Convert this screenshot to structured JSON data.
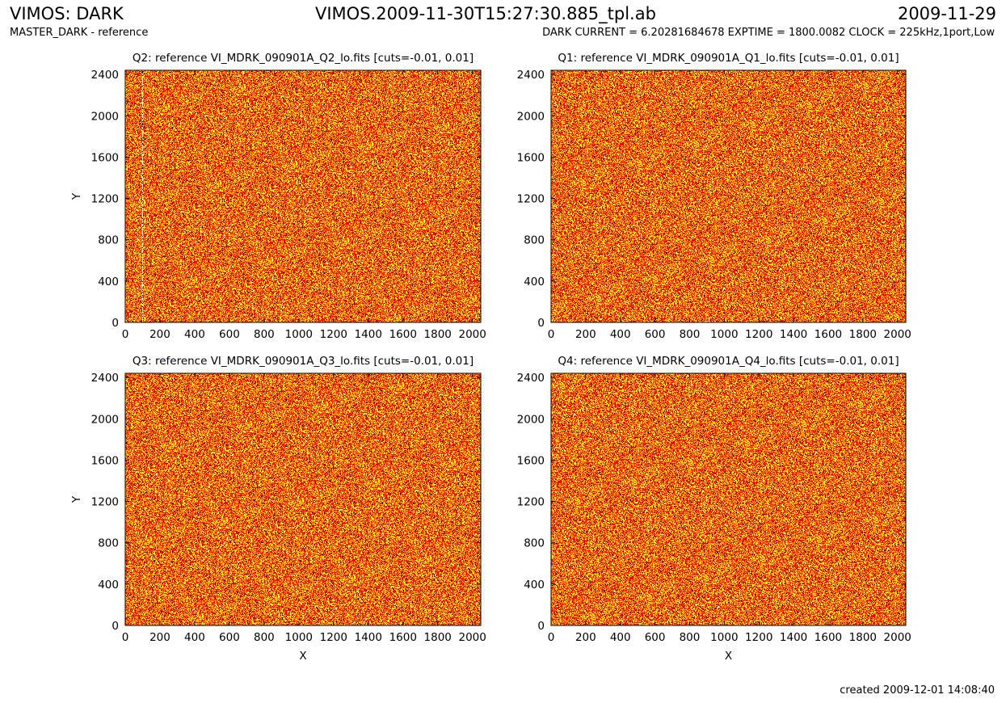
{
  "header": {
    "left_title": "VIMOS: DARK",
    "center_title": "VIMOS.2009-11-30T15:27:30.885_tpl.ab",
    "right_title": "2009-11-29",
    "left_subtitle": "MASTER_DARK - reference",
    "right_subtitle": "DARK CURRENT = 6.20281684678 EXPTIME = 1800.0082 CLOCK = 225kHz,1port,Low"
  },
  "footer": {
    "created": "created 2009-12-01 14:08:40"
  },
  "colors": {
    "background": "#ffffff",
    "map_red": "#ff0000",
    "map_orange": "#ff7f00",
    "map_yellow": "#ffff00",
    "map_black": "#000000"
  },
  "chart_data": [
    {
      "type": "heatmap",
      "title": "Q2: reference VI_MDRK_090901A_Q2_lo.fits [cuts=-0.01, 0.01]",
      "xlabel": "",
      "ylabel": "Y",
      "xlim": [
        0,
        2048
      ],
      "ylim": [
        0,
        2440
      ],
      "xticks": [
        0,
        200,
        400,
        600,
        800,
        1000,
        1200,
        1400,
        1600,
        1800,
        2000
      ],
      "yticks": [
        0,
        400,
        800,
        1200,
        1600,
        2000,
        2400
      ],
      "cuts": [
        -0.01,
        0.01
      ],
      "column_artifact_x": 100
    },
    {
      "type": "heatmap",
      "title": "Q1: reference VI_MDRK_090901A_Q1_lo.fits [cuts=-0.01, 0.01]",
      "xlabel": "",
      "ylabel": "",
      "xlim": [
        0,
        2048
      ],
      "ylim": [
        0,
        2440
      ],
      "xticks": [
        0,
        200,
        400,
        600,
        800,
        1000,
        1200,
        1400,
        1600,
        1800,
        2000
      ],
      "yticks": [
        0,
        400,
        800,
        1200,
        1600,
        2000,
        2400
      ],
      "cuts": [
        -0.01,
        0.01
      ]
    },
    {
      "type": "heatmap",
      "title": "Q3: reference VI_MDRK_090901A_Q3_lo.fits [cuts=-0.01, 0.01]",
      "xlabel": "X",
      "ylabel": "Y",
      "xlim": [
        0,
        2048
      ],
      "ylim": [
        0,
        2440
      ],
      "xticks": [
        0,
        200,
        400,
        600,
        800,
        1000,
        1200,
        1400,
        1600,
        1800,
        2000
      ],
      "yticks": [
        0,
        400,
        800,
        1200,
        1600,
        2000,
        2400
      ],
      "cuts": [
        -0.01,
        0.01
      ]
    },
    {
      "type": "heatmap",
      "title": "Q4: reference VI_MDRK_090901A_Q4_lo.fits [cuts=-0.01, 0.01]",
      "xlabel": "X",
      "ylabel": "",
      "xlim": [
        0,
        2048
      ],
      "ylim": [
        0,
        2440
      ],
      "xticks": [
        0,
        200,
        400,
        600,
        800,
        1000,
        1200,
        1400,
        1600,
        1800,
        2000
      ],
      "yticks": [
        0,
        400,
        800,
        1200,
        1600,
        2000,
        2400
      ],
      "cuts": [
        -0.01,
        0.01
      ]
    }
  ]
}
